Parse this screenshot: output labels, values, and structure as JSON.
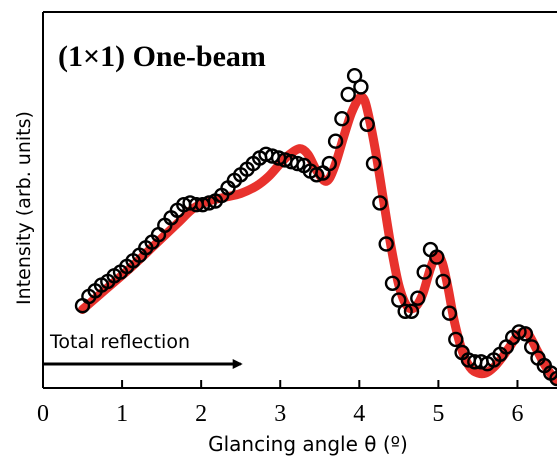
{
  "chart_data": {
    "type": "scatter",
    "title": "(1×1) One-beam",
    "xlabel": "Glancing angle θ (º)",
    "ylabel": "Intensity (arb. units)",
    "xlim": [
      0,
      6.5
    ],
    "ylim": [
      0,
      1
    ],
    "xticks": [
      0,
      1,
      2,
      3,
      4,
      5,
      6
    ],
    "xtick_labels": [
      "0",
      "1",
      "2",
      "3",
      "4",
      "5",
      "6"
    ],
    "grid": false,
    "legend": "none",
    "annotation": {
      "text": "Total reflection",
      "arrow_from": 0,
      "arrow_to": 2.5
    },
    "colors": {
      "measured": "#000000",
      "fit": "#e8322d"
    },
    "series": [
      {
        "kind": "measured",
        "marker": "open-circle",
        "x": [
          0.5,
          0.58,
          0.66,
          0.74,
          0.82,
          0.9,
          0.98,
          1.06,
          1.14,
          1.22,
          1.3,
          1.38,
          1.46,
          1.54,
          1.62,
          1.7,
          1.78,
          1.86,
          1.94,
          2.02,
          2.1,
          2.18,
          2.26,
          2.34,
          2.42,
          2.5,
          2.58,
          2.66,
          2.74,
          2.82,
          2.9,
          2.98,
          3.06,
          3.14,
          3.22,
          3.3,
          3.38,
          3.46,
          3.54,
          3.62,
          3.7,
          3.78,
          3.86,
          3.94,
          4.02,
          4.1,
          4.18,
          4.26,
          4.34,
          4.42,
          4.5,
          4.58,
          4.66,
          4.74,
          4.82,
          4.9,
          4.98,
          5.06,
          5.14,
          5.22,
          5.3,
          5.38,
          5.46,
          5.54,
          5.62,
          5.7,
          5.78,
          5.86,
          5.94,
          6.02,
          6.1,
          6.18,
          6.26,
          6.34,
          6.42,
          6.5
        ],
        "y": [
          0.22,
          0.245,
          0.26,
          0.275,
          0.285,
          0.3,
          0.31,
          0.325,
          0.34,
          0.355,
          0.375,
          0.39,
          0.41,
          0.435,
          0.455,
          0.475,
          0.49,
          0.495,
          0.49,
          0.49,
          0.495,
          0.5,
          0.515,
          0.535,
          0.555,
          0.57,
          0.585,
          0.6,
          0.615,
          0.625,
          0.62,
          0.615,
          0.61,
          0.605,
          0.6,
          0.595,
          0.58,
          0.57,
          0.575,
          0.6,
          0.66,
          0.72,
          0.785,
          0.835,
          0.805,
          0.705,
          0.6,
          0.495,
          0.385,
          0.28,
          0.235,
          0.205,
          0.205,
          0.24,
          0.31,
          0.37,
          0.35,
          0.285,
          0.2,
          0.13,
          0.095,
          0.075,
          0.07,
          0.07,
          0.065,
          0.075,
          0.09,
          0.11,
          0.135,
          0.15,
          0.145,
          0.11,
          0.08,
          0.06,
          0.04,
          0.025
        ]
      },
      {
        "kind": "fit",
        "style": "line",
        "x": [
          0.5,
          0.8,
          1.1,
          1.4,
          1.7,
          1.9,
          2.1,
          2.3,
          2.5,
          2.7,
          2.85,
          3.0,
          3.12,
          3.25,
          3.35,
          3.45,
          3.55,
          3.62,
          3.7,
          3.8,
          3.9,
          4.0,
          4.05,
          4.1,
          4.2,
          4.3,
          4.4,
          4.5,
          4.6,
          4.7,
          4.8,
          4.9,
          4.98,
          5.05,
          5.12,
          5.2,
          5.3,
          5.4,
          5.5,
          5.6,
          5.7,
          5.8,
          5.9,
          6.0,
          6.08,
          6.15,
          6.25,
          6.35,
          6.45,
          6.5
        ],
        "y": [
          0.21,
          0.265,
          0.32,
          0.38,
          0.44,
          0.48,
          0.5,
          0.51,
          0.52,
          0.54,
          0.565,
          0.6,
          0.625,
          0.64,
          0.625,
          0.585,
          0.555,
          0.56,
          0.6,
          0.67,
          0.735,
          0.775,
          0.775,
          0.745,
          0.64,
          0.51,
          0.38,
          0.275,
          0.22,
          0.215,
          0.25,
          0.32,
          0.355,
          0.335,
          0.27,
          0.18,
          0.1,
          0.055,
          0.04,
          0.04,
          0.055,
          0.08,
          0.11,
          0.14,
          0.15,
          0.14,
          0.1,
          0.06,
          0.03,
          0.02
        ]
      }
    ]
  }
}
